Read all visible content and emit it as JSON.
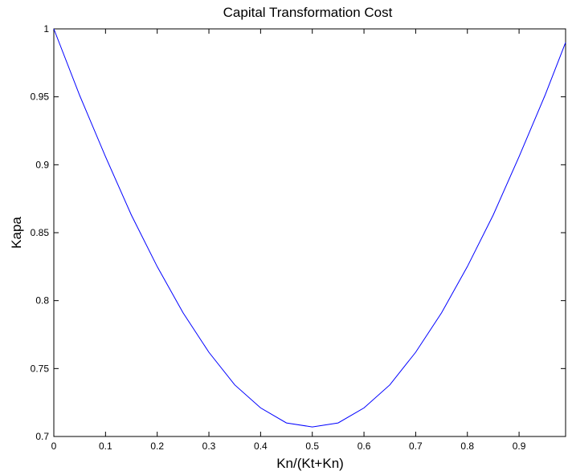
{
  "chart_data": {
    "type": "line",
    "title": "Capital Transformation Cost",
    "xlabel": "Kn/(Kt+Kn)",
    "ylabel": "Kapa",
    "xlim": [
      0,
      0.99
    ],
    "ylim": [
      0.7,
      1.0
    ],
    "x_ticks": [
      0,
      0.1,
      0.2,
      0.3,
      0.4,
      0.5,
      0.6,
      0.7,
      0.8,
      0.9
    ],
    "x_tick_labels": [
      "0",
      "0.1",
      "0.2",
      "0.3",
      "0.4",
      "0.5",
      "0.6",
      "0.7",
      "0.8",
      "0.9"
    ],
    "y_ticks": [
      0.7,
      0.75,
      0.8,
      0.85,
      0.9,
      0.95,
      1.0
    ],
    "y_tick_labels": [
      "0.7",
      "0.75",
      "0.8",
      "0.85",
      "0.9",
      "0.95",
      "1"
    ],
    "grid": false,
    "line_color": "#0000ff",
    "series": [
      {
        "x": [
          0,
          0.05,
          0.1,
          0.15,
          0.2,
          0.25,
          0.3,
          0.35,
          0.4,
          0.45,
          0.5,
          0.55,
          0.6,
          0.65,
          0.7,
          0.75,
          0.8,
          0.85,
          0.9,
          0.95,
          0.99
        ],
        "values": [
          1.0,
          0.951,
          0.906,
          0.863,
          0.825,
          0.791,
          0.762,
          0.738,
          0.721,
          0.71,
          0.707,
          0.71,
          0.721,
          0.738,
          0.762,
          0.791,
          0.825,
          0.863,
          0.906,
          0.951,
          0.99
        ]
      }
    ]
  }
}
